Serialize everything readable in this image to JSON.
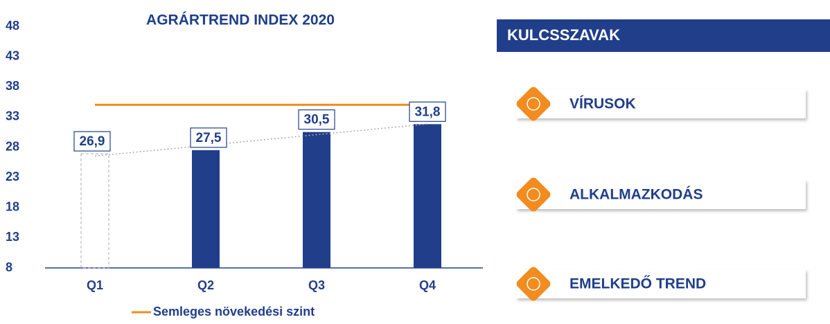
{
  "chart_data": {
    "type": "bar",
    "title": "AGRÁRTREND INDEX 2020",
    "categories": [
      "Q1",
      "Q2",
      "Q3",
      "Q4"
    ],
    "values": [
      26.9,
      27.5,
      30.5,
      31.8
    ],
    "value_labels": [
      "26,9",
      "27,5",
      "30,5",
      "31,8"
    ],
    "colors": [
      "none",
      "#203e8a",
      "#203e8a",
      "#203e8a"
    ],
    "ylim": [
      8,
      48
    ],
    "yticks": [
      8,
      13,
      18,
      23,
      28,
      33,
      38,
      43,
      48
    ],
    "reference_line": {
      "name": "Semleges növekedési szint",
      "value": 35,
      "color": "#f28c1e"
    },
    "trendline": true
  },
  "keywords": {
    "title": "KULCSSZAVAK",
    "items": [
      "VÍRUSOK",
      "ALKALMAZKODÁS",
      "EMELKEDŐ TREND"
    ]
  }
}
